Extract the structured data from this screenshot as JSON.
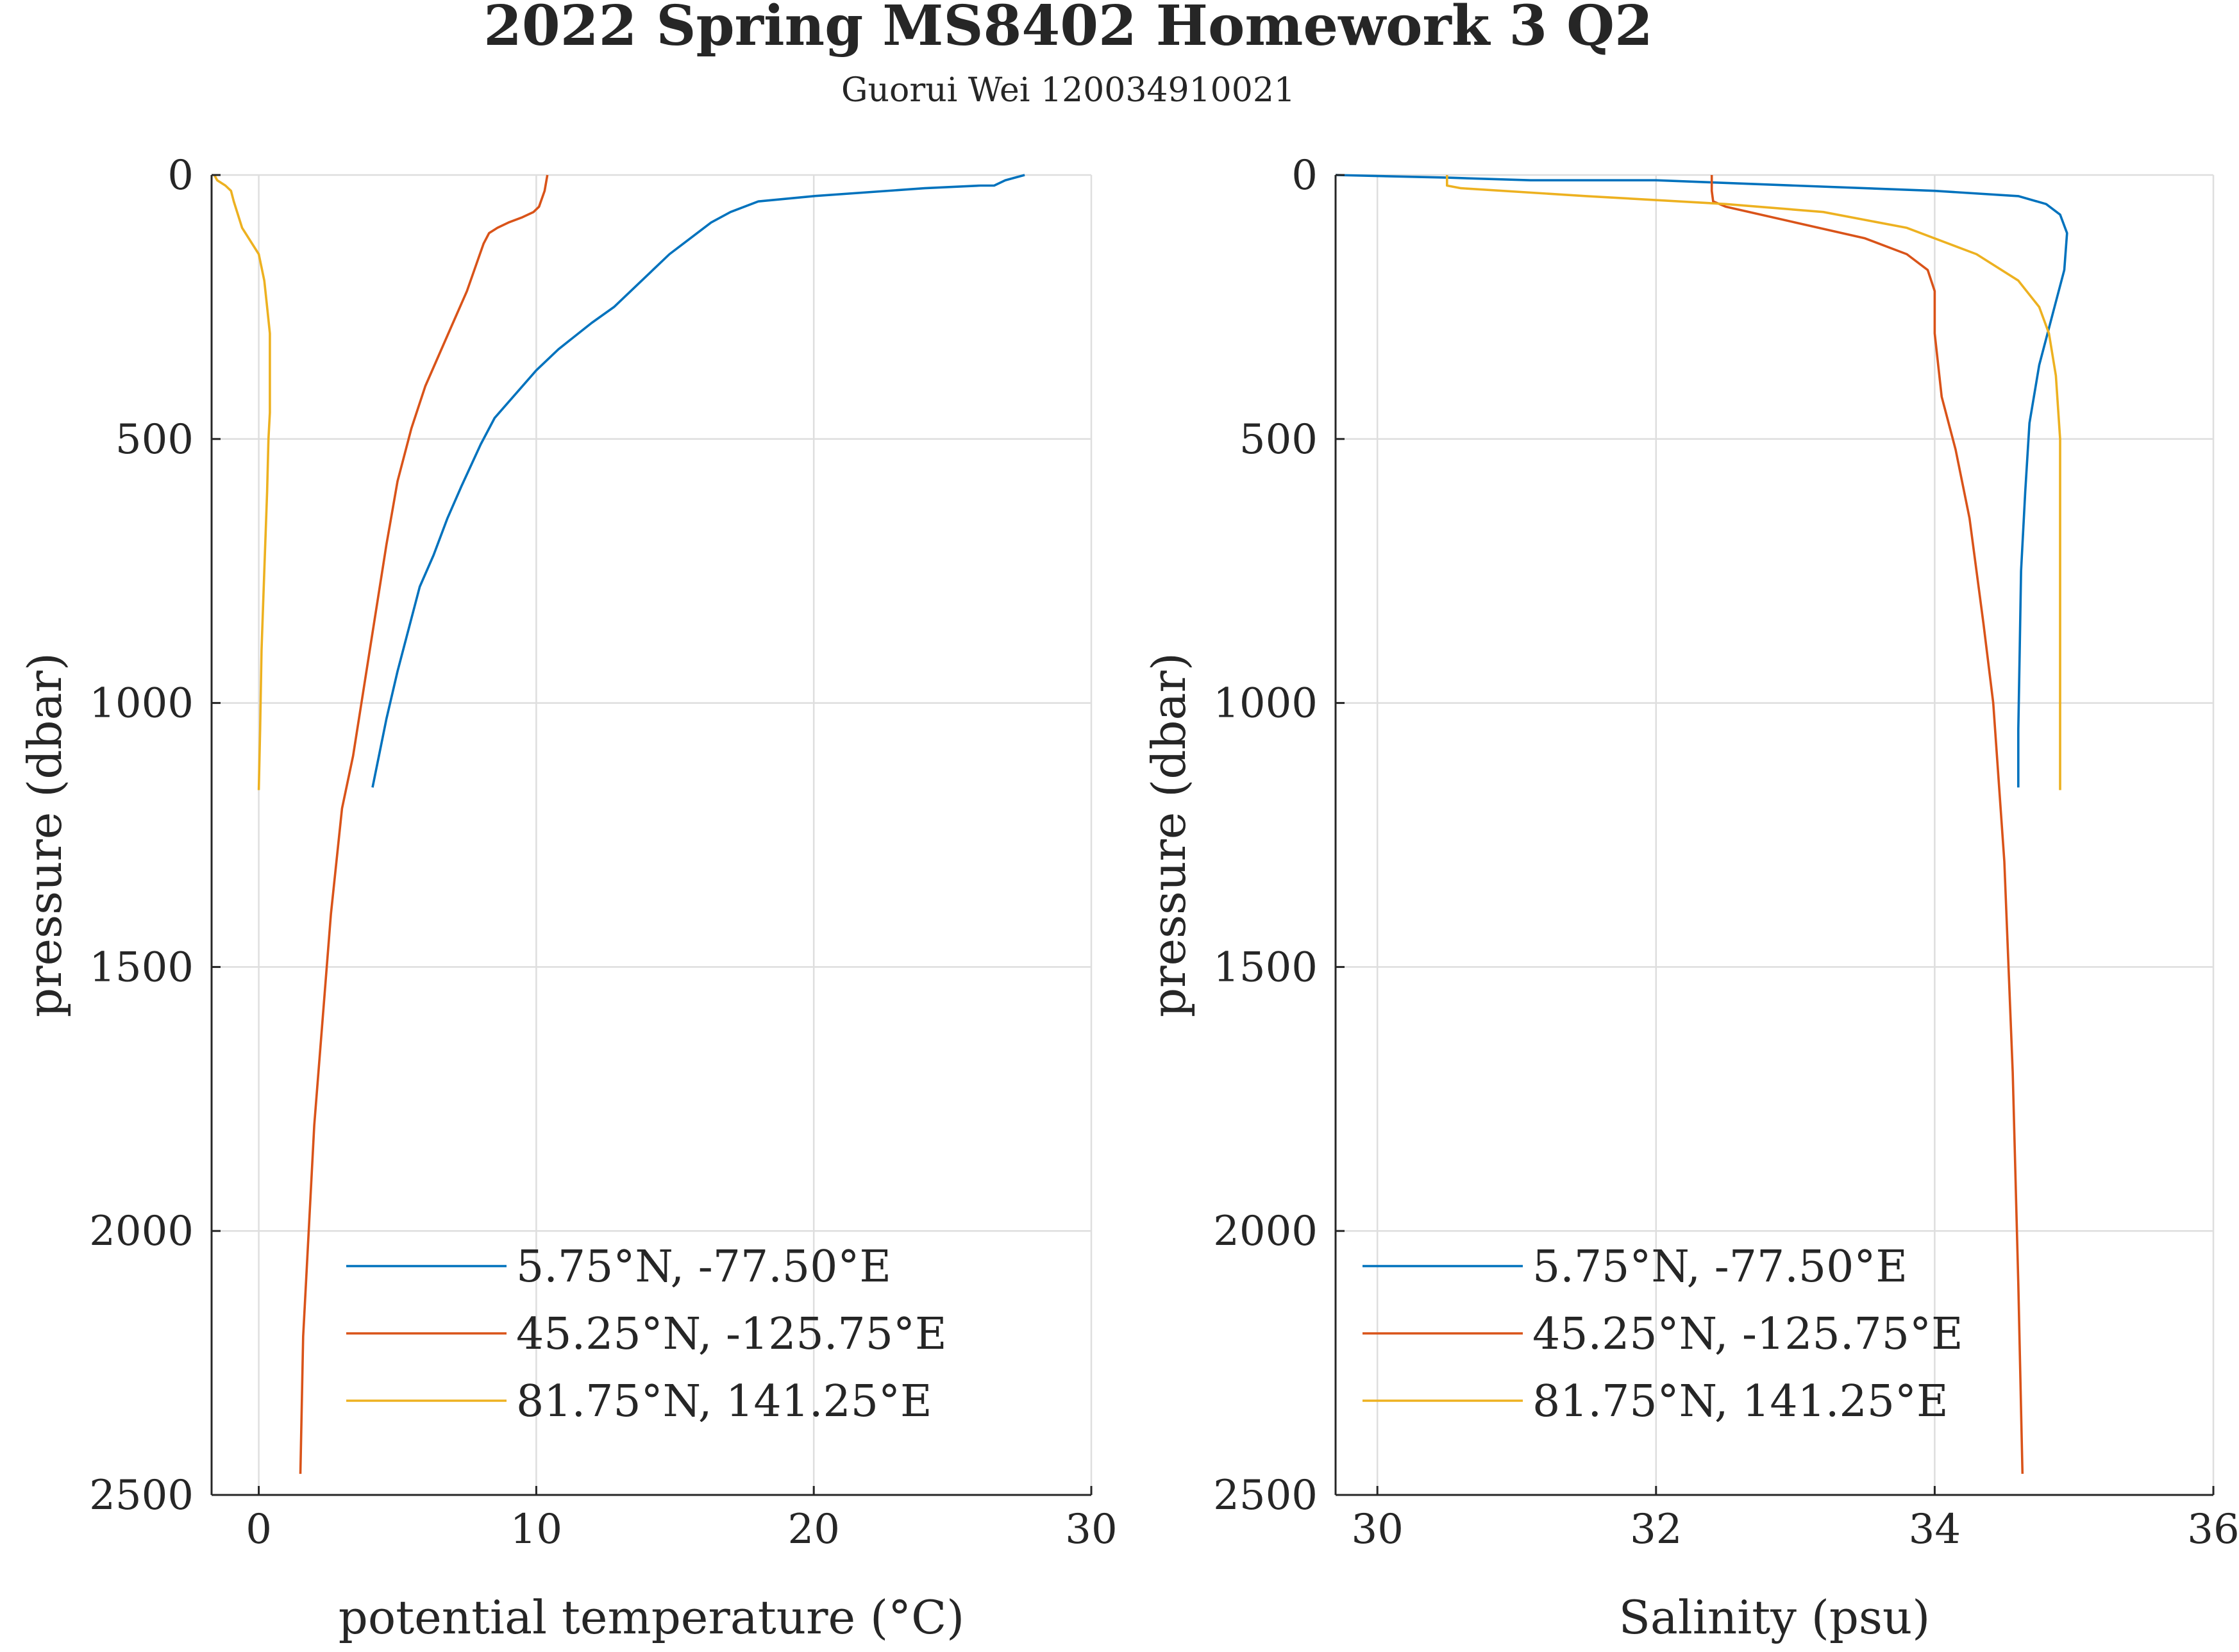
{
  "figure": {
    "title": "2022 Spring MS8402 Homework 3 Q2",
    "subtitle": "Guorui Wei 120034910021"
  },
  "series_names": [
    "5.75°N, -77.50°E",
    "45.25°N, -125.75°E",
    "81.75°N, 141.25°E"
  ],
  "colors": {
    "blue": "#0072BD",
    "orange": "#D95319",
    "yellow": "#EDB120",
    "grid": "#dedede",
    "axis": "#262626"
  },
  "chart_data": [
    {
      "type": "line",
      "title": "",
      "xlabel": "potential temperature (°C)",
      "ylabel": "pressure (dbar)",
      "xlim": [
        -1.7,
        30
      ],
      "ylim": [
        0,
        2500
      ],
      "y_reversed": true,
      "xticks": [
        0,
        10,
        20,
        30
      ],
      "yticks": [
        0,
        500,
        1000,
        1500,
        2000,
        2500
      ],
      "grid": true,
      "legend": "bottom",
      "series": [
        {
          "name": "5.75°N, -77.50°E",
          "color": "#0072BD",
          "x": [
            27.6,
            26.9,
            26.5,
            26.0,
            24.0,
            20.0,
            18.0,
            17.5,
            17.0,
            16.3,
            15.8,
            14.8,
            13.8,
            12.8,
            12.0,
            10.8,
            10.0,
            8.5,
            8.0,
            7.3,
            6.8,
            6.3,
            5.8,
            5.4,
            5.0,
            4.6,
            4.1
          ],
          "y": [
            0,
            10,
            20,
            20,
            25,
            40,
            50,
            60,
            70,
            90,
            110,
            150,
            200,
            250,
            280,
            330,
            370,
            460,
            510,
            590,
            650,
            720,
            780,
            860,
            940,
            1030,
            1160
          ]
        },
        {
          "name": "45.25°N, -125.75°E",
          "color": "#D95319",
          "x": [
            10.4,
            10.3,
            10.1,
            9.9,
            9.5,
            9.0,
            8.6,
            8.3,
            8.1,
            7.9,
            7.5,
            7.0,
            6.5,
            6.0,
            5.5,
            5.0,
            4.6,
            4.3,
            4.0,
            3.7,
            3.4,
            3.0,
            2.6,
            2.3,
            2.0,
            1.8,
            1.6,
            1.5
          ],
          "y": [
            0,
            30,
            60,
            70,
            80,
            90,
            100,
            110,
            130,
            160,
            220,
            280,
            340,
            400,
            480,
            580,
            700,
            800,
            900,
            1000,
            1100,
            1200,
            1400,
            1600,
            1800,
            2000,
            2200,
            2460
          ]
        },
        {
          "name": "81.75°N, 141.25°E",
          "color": "#EDB120",
          "x": [
            -1.6,
            -1.5,
            -1.2,
            -1.0,
            -0.9,
            -0.6,
            0.0,
            0.2,
            0.3,
            0.4,
            0.4,
            0.35,
            0.3,
            0.2,
            0.1,
            0.05,
            0.0
          ],
          "y": [
            0,
            10,
            20,
            30,
            50,
            100,
            150,
            200,
            250,
            300,
            450,
            500,
            600,
            750,
            900,
            1050,
            1165
          ]
        }
      ]
    },
    {
      "type": "line",
      "title": "",
      "xlabel": "Salinity (psu)",
      "ylabel": "pressure (dbar)",
      "xlim": [
        29.7,
        36
      ],
      "ylim": [
        0,
        2500
      ],
      "y_reversed": true,
      "xticks": [
        30,
        32,
        34,
        36
      ],
      "yticks": [
        0,
        500,
        1000,
        1500,
        2000,
        2500
      ],
      "grid": true,
      "legend": "bottom",
      "series": [
        {
          "name": "5.75°N, -77.50°E",
          "color": "#0072BD",
          "x": [
            29.7,
            30.5,
            31.1,
            32.0,
            33.0,
            34.0,
            34.6,
            34.8,
            34.9,
            34.95,
            34.93,
            34.85,
            34.75,
            34.68,
            34.65,
            34.62,
            34.61,
            34.6,
            34.6
          ],
          "y": [
            0,
            5,
            10,
            10,
            20,
            30,
            40,
            55,
            75,
            110,
            180,
            260,
            360,
            470,
            600,
            750,
            900,
            1050,
            1160
          ]
        },
        {
          "name": "45.25°N, -125.75°E",
          "color": "#D95319",
          "x": [
            32.4,
            32.4,
            32.41,
            32.5,
            33.0,
            33.5,
            33.8,
            33.95,
            34.0,
            34.0,
            34.05,
            34.15,
            34.25,
            34.3,
            34.35,
            34.42,
            34.5,
            34.56,
            34.6,
            34.63
          ],
          "y": [
            0,
            30,
            50,
            60,
            90,
            120,
            150,
            180,
            220,
            300,
            420,
            520,
            650,
            750,
            850,
            1000,
            1300,
            1700,
            2100,
            2460
          ]
        },
        {
          "name": "81.75°N, 141.25°E",
          "color": "#EDB120",
          "x": [
            30.5,
            30.5,
            30.6,
            31.5,
            32.5,
            33.2,
            33.8,
            34.3,
            34.6,
            34.75,
            34.82,
            34.87,
            34.9,
            34.9,
            34.9,
            34.9
          ],
          "y": [
            0,
            20,
            25,
            40,
            55,
            70,
            100,
            150,
            200,
            250,
            300,
            380,
            500,
            700,
            1000,
            1165
          ]
        }
      ]
    }
  ]
}
